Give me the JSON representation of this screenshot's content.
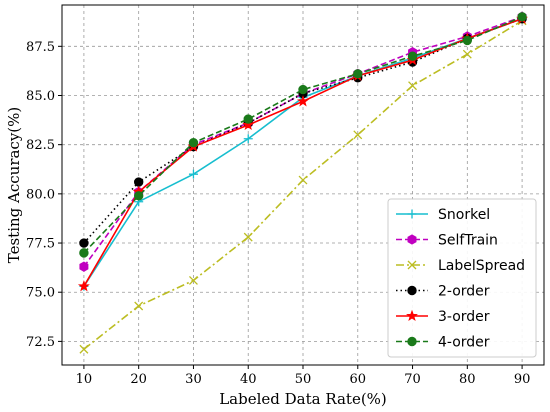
{
  "chart_data": {
    "type": "line",
    "xlabel": "Labeled Data Rate(%)",
    "ylabel": "Testing Accuracy(%)",
    "x": [
      10,
      20,
      30,
      40,
      50,
      60,
      70,
      80,
      90
    ],
    "x_ticks": [
      "10",
      "20",
      "30",
      "40",
      "50",
      "60",
      "70",
      "80",
      "90"
    ],
    "xlim": [
      6,
      94
    ],
    "ylim": [
      71.3,
      89.6
    ],
    "y_ticks": [
      72.5,
      75.0,
      77.5,
      80.0,
      82.5,
      85.0,
      87.5
    ],
    "y_tick_labels": [
      "72.5",
      "75.0",
      "77.5",
      "80.0",
      "82.5",
      "85.0",
      "87.5"
    ],
    "grid": true,
    "legend_position": "lower-right",
    "series": [
      {
        "name": "Snorkel",
        "color": "#17becf",
        "line_style": "solid",
        "marker": "plus",
        "values": [
          75.3,
          79.6,
          81.0,
          82.8,
          84.9,
          86.0,
          86.9,
          87.9,
          88.9
        ]
      },
      {
        "name": "SelfTrain",
        "color": "#c000c0",
        "line_style": "dashed",
        "marker": "hexagon",
        "values": [
          76.3,
          80.1,
          82.5,
          83.6,
          85.1,
          86.1,
          87.2,
          88.0,
          89.0
        ]
      },
      {
        "name": "LabelSpread",
        "color": "#bcbd22",
        "line_style": "dashdot",
        "marker": "x",
        "values": [
          72.1,
          74.3,
          75.6,
          77.8,
          80.7,
          83.0,
          85.5,
          87.1,
          88.8
        ]
      },
      {
        "name": "2-order",
        "color": "#000000",
        "line_style": "dotted",
        "marker": "circle",
        "values": [
          77.5,
          80.6,
          82.4,
          83.6,
          85.1,
          85.9,
          86.7,
          87.9,
          88.9
        ]
      },
      {
        "name": "3-order",
        "color": "#ff0000",
        "line_style": "solid",
        "marker": "star",
        "values": [
          75.3,
          80.1,
          82.4,
          83.5,
          84.7,
          86.0,
          86.8,
          87.9,
          88.9
        ]
      },
      {
        "name": "4-order",
        "color": "#1a7a1a",
        "line_style": "dashed",
        "marker": "circle",
        "values": [
          77.0,
          79.9,
          82.6,
          83.8,
          85.3,
          86.1,
          87.0,
          87.8,
          89.0
        ]
      }
    ]
  }
}
